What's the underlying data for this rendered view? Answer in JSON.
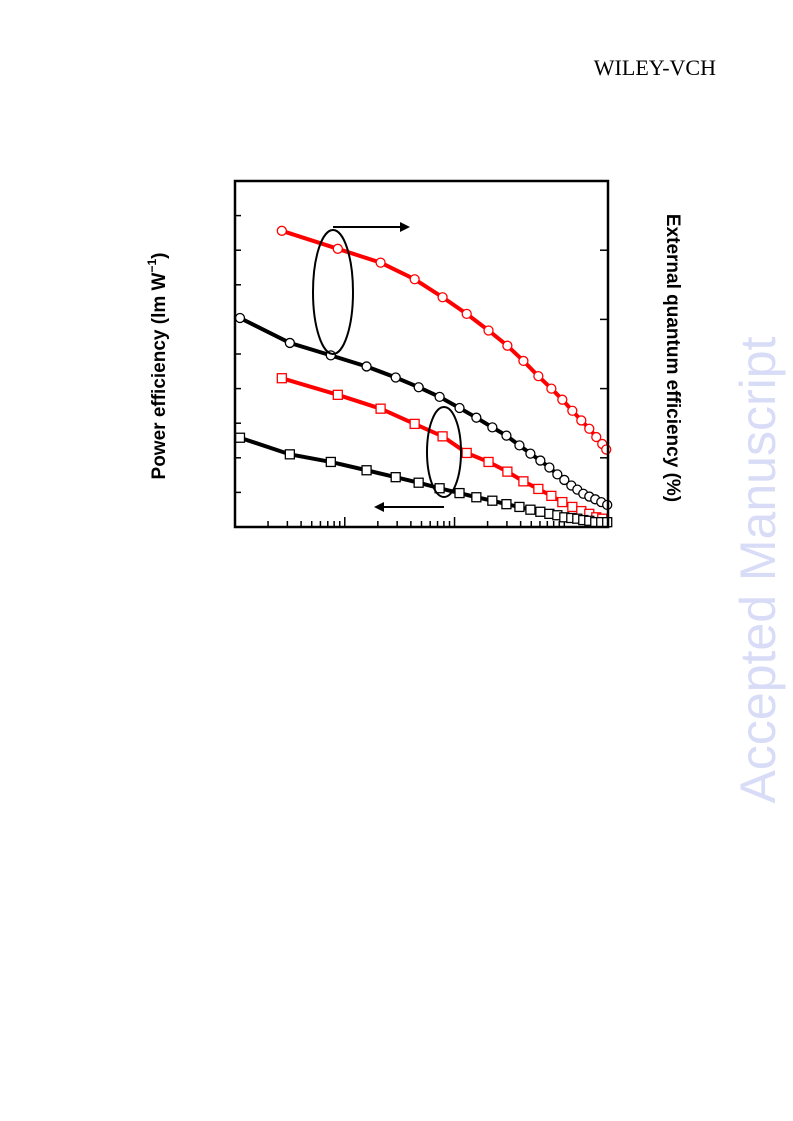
{
  "header": {
    "publisher": "WILEY-VCH"
  },
  "watermark": "Accepted Manuscript",
  "chart_data": {
    "type": "line",
    "y_label": {
      "text": "Power efficiency (lm W",
      "superscript": "−1",
      "suffix": ")"
    },
    "y2_label": "External quantum efficiency (%)",
    "log_x": true,
    "xlim": [
      1,
      2500
    ],
    "xticks": [
      2,
      3,
      4,
      5,
      6,
      7,
      8,
      9,
      10,
      20,
      30,
      40,
      50,
      60,
      70,
      80,
      90,
      100,
      200,
      300,
      400,
      500,
      600,
      700,
      800,
      900,
      1000,
      2000
    ],
    "ylim": [
      0,
      50
    ],
    "yticks": [
      5,
      10,
      15,
      20,
      25,
      30,
      35,
      40,
      45
    ],
    "y2lim": [
      0,
      25
    ],
    "y2ticks": [
      5,
      10,
      15,
      20
    ],
    "series": [
      {
        "color": "#ff0000",
        "marker": "circle",
        "axis": "y2",
        "x": [
          2.67,
          8.64,
          21.2,
          43.3,
          77.8,
          129,
          204,
          303,
          424,
          580,
          762,
          959,
          1183,
          1428,
          1688,
          1955,
          2215,
          2410
        ],
        "values": [
          21.4,
          20.1,
          19.1,
          17.9,
          16.6,
          15.4,
          14.2,
          13.1,
          12.0,
          10.9,
          10.0,
          9.2,
          8.4,
          7.7,
          7.1,
          6.5,
          6.0,
          5.6
        ]
      },
      {
        "color": "#ff0000",
        "marker": "square",
        "axis": "y",
        "x": [
          2.67,
          8.64,
          21.2,
          43.3,
          77.8,
          129,
          204,
          303,
          424,
          580,
          762,
          959,
          1183,
          1428,
          1688,
          1955,
          2215,
          2410
        ],
        "values": [
          21.5,
          19.1,
          17.1,
          14.9,
          13.1,
          10.7,
          9.4,
          8.0,
          6.6,
          5.5,
          4.5,
          3.6,
          2.9,
          2.3,
          1.9,
          1.4,
          1.2,
          0.7
        ]
      },
      {
        "color": "#000000",
        "marker": "circle",
        "axis": "y2",
        "x": [
          1.11,
          3.16,
          7.46,
          15.8,
          29.1,
          47.1,
          73.1,
          111,
          158,
          221,
          297,
          390,
          491,
          605,
          731,
          864,
          1000,
          1158,
          1313,
          1488,
          1688,
          1914,
          2170,
          2459
        ],
        "values": [
          15.1,
          13.3,
          12.4,
          11.6,
          10.8,
          10.1,
          9.4,
          8.6,
          7.9,
          7.2,
          6.6,
          5.9,
          5.3,
          4.8,
          4.3,
          3.8,
          3.4,
          3.0,
          2.7,
          2.4,
          2.2,
          2.0,
          1.8,
          1.6
        ]
      },
      {
        "color": "#000000",
        "marker": "square",
        "axis": "y",
        "x": [
          1.11,
          3.16,
          7.46,
          15.8,
          29.1,
          47.1,
          73.1,
          111,
          158,
          221,
          297,
          390,
          491,
          605,
          731,
          864,
          1000,
          1158,
          1313,
          1488,
          1688,
          1914,
          2170,
          2459
        ],
        "values": [
          12.9,
          10.5,
          9.4,
          8.2,
          7.2,
          6.4,
          5.6,
          4.9,
          4.3,
          3.8,
          3.3,
          2.9,
          2.5,
          2.2,
          1.9,
          1.7,
          1.4,
          1.3,
          1.2,
          1.0,
          0.9,
          0.7,
          0.7,
          0.7
        ]
      }
    ]
  }
}
